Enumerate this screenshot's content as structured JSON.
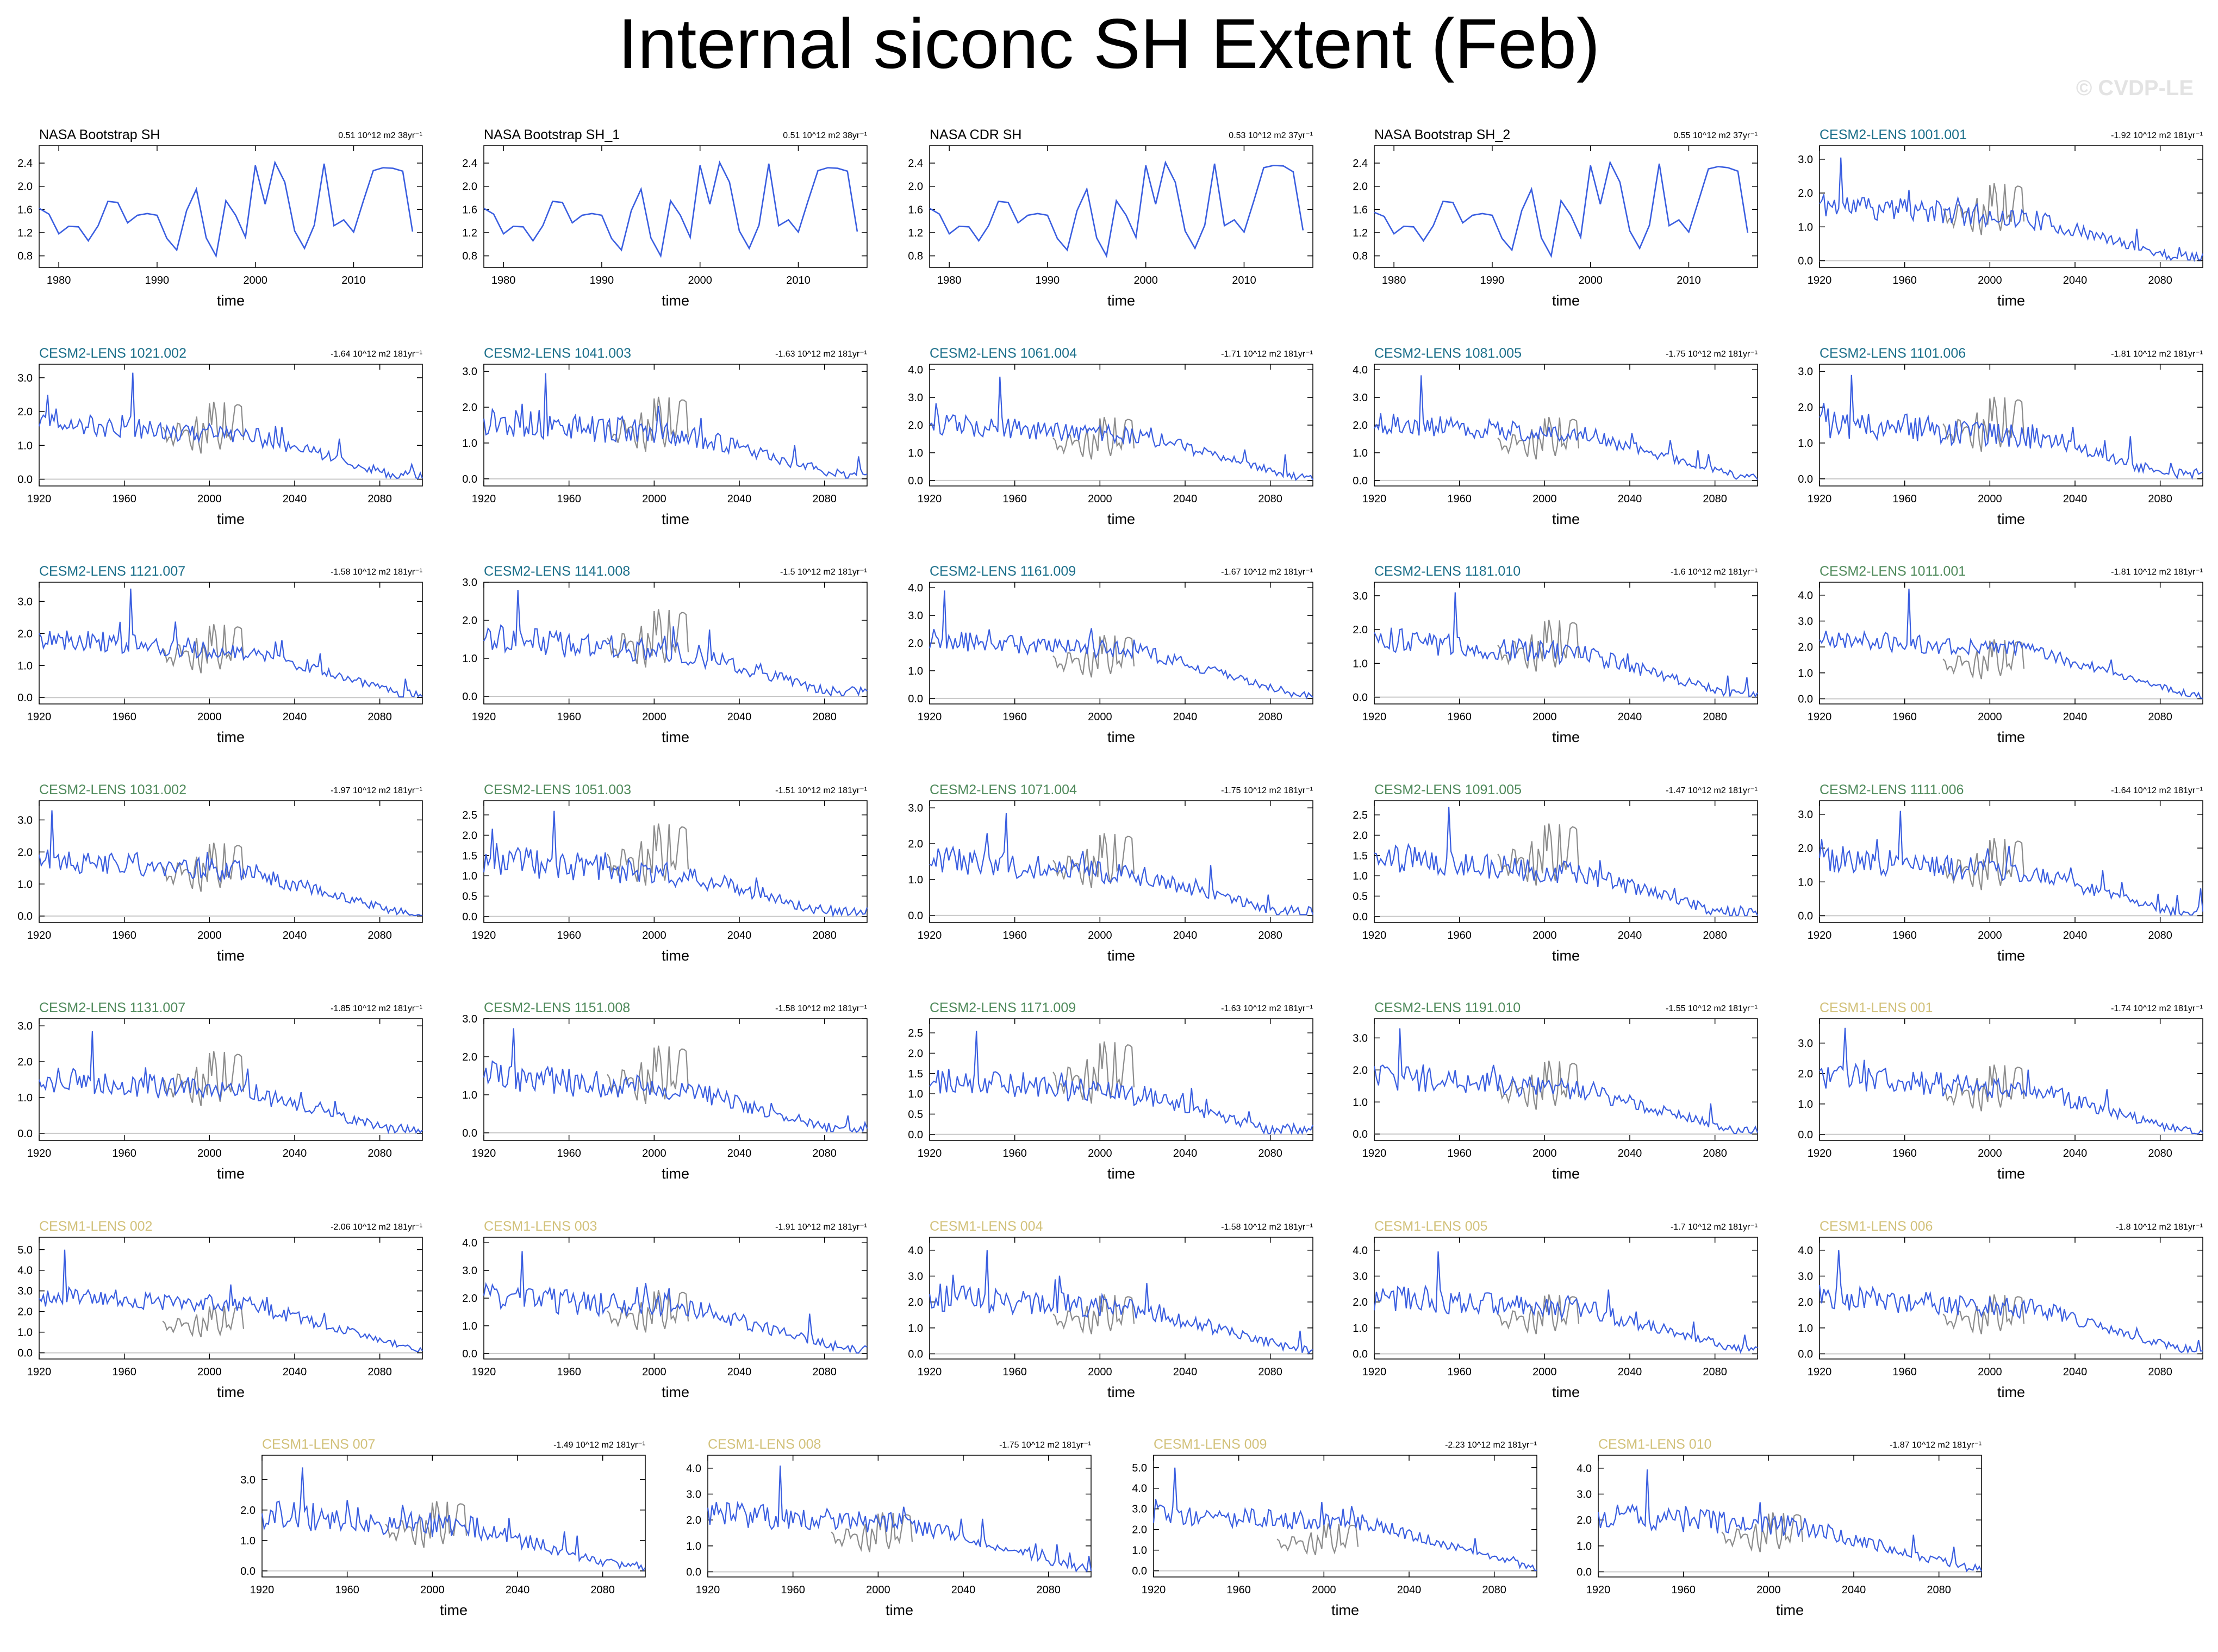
{
  "title": "Internal siconc SH Extent (Feb)",
  "watermark": "© CVDP-LE",
  "colors": {
    "series_main": "#3a5ee0",
    "series_obs_mean": "#8c8c8c",
    "zero_line": "#c8c8c8",
    "obs_label": "#000000",
    "cesm2_cmip6_label": "#1b6f8a",
    "cesm2_smbb_label": "#4f8a5b",
    "cesm1_label": "#d2c17a"
  },
  "chart_data": [
    {
      "type": "line",
      "title": "NASA Bootstrap SH",
      "title_color": "obs_label",
      "trend": "0.51 10^12 m2 38yr⁻¹",
      "xlabel": "time",
      "xlim": [
        1978,
        2017
      ],
      "xticks": [
        "1980",
        "1990",
        "2000",
        "2010"
      ],
      "ylim": [
        0.6,
        2.7
      ],
      "yticks": [
        "0.8",
        "1.2",
        "1.6",
        "2.0",
        "2.4"
      ],
      "series": [
        {
          "x_start": 1978,
          "values": [
            1.62,
            1.52,
            1.18,
            1.31,
            1.3,
            1.06,
            1.32,
            1.74,
            1.72,
            1.37,
            1.5,
            1.53,
            1.5,
            1.1,
            0.9,
            1.58,
            1.95,
            1.11,
            0.8,
            1.75,
            1.5,
            1.12,
            2.36,
            1.69,
            2.41,
            2.07,
            1.23,
            0.93,
            1.33,
            2.39,
            1.32,
            1.42,
            1.21,
            1.75,
            2.27,
            2.32,
            2.31,
            2.26,
            1.22
          ]
        }
      ]
    },
    {
      "type": "line",
      "title": "NASA Bootstrap SH_1",
      "title_color": "obs_label",
      "trend": "0.51 10^12 m2 38yr⁻¹",
      "xlabel": "time",
      "xlim": [
        1978,
        2017
      ],
      "xticks": [
        "1980",
        "1990",
        "2000",
        "2010"
      ],
      "ylim": [
        0.6,
        2.7
      ],
      "yticks": [
        "0.8",
        "1.2",
        "1.6",
        "2.0",
        "2.4"
      ],
      "series": [
        {
          "x_start": 1978,
          "values": [
            1.62,
            1.52,
            1.18,
            1.31,
            1.3,
            1.06,
            1.32,
            1.74,
            1.72,
            1.37,
            1.5,
            1.53,
            1.5,
            1.1,
            0.9,
            1.58,
            1.95,
            1.11,
            0.8,
            1.75,
            1.5,
            1.12,
            2.36,
            1.69,
            2.41,
            2.07,
            1.23,
            0.93,
            1.33,
            2.39,
            1.32,
            1.42,
            1.21,
            1.75,
            2.27,
            2.32,
            2.31,
            2.26,
            1.22
          ]
        }
      ]
    },
    {
      "type": "line",
      "title": "NASA CDR SH",
      "title_color": "obs_label",
      "trend": "0.53 10^12 m2 37yr⁻¹",
      "xlabel": "time",
      "xlim": [
        1978,
        2017
      ],
      "xticks": [
        "1980",
        "1990",
        "2000",
        "2010"
      ],
      "ylim": [
        0.6,
        2.7
      ],
      "yticks": [
        "0.8",
        "1.2",
        "1.6",
        "2.0",
        "2.4"
      ],
      "series": [
        {
          "x_start": 1978,
          "values": [
            1.62,
            1.52,
            1.18,
            1.31,
            1.3,
            1.06,
            1.32,
            1.74,
            1.72,
            1.37,
            1.5,
            1.53,
            1.5,
            1.1,
            0.9,
            1.58,
            1.95,
            1.11,
            0.8,
            1.75,
            1.5,
            1.12,
            2.36,
            1.69,
            2.41,
            2.07,
            1.23,
            0.93,
            1.33,
            2.39,
            1.32,
            1.42,
            1.21,
            1.75,
            2.32,
            2.36,
            2.35,
            2.25,
            1.24
          ]
        }
      ]
    },
    {
      "type": "line",
      "title": "NASA Bootstrap SH_2",
      "title_color": "obs_label",
      "trend": "0.55 10^12 m2 37yr⁻¹",
      "xlabel": "time",
      "xlim": [
        1978,
        2017
      ],
      "xticks": [
        "1980",
        "1990",
        "2000",
        "2010"
      ],
      "ylim": [
        0.6,
        2.7
      ],
      "yticks": [
        "0.8",
        "1.2",
        "1.6",
        "2.0",
        "2.4"
      ],
      "series": [
        {
          "x_start": 1978,
          "values": [
            1.55,
            1.48,
            1.18,
            1.31,
            1.3,
            1.06,
            1.32,
            1.74,
            1.72,
            1.37,
            1.5,
            1.53,
            1.5,
            1.1,
            0.9,
            1.58,
            1.95,
            1.11,
            0.8,
            1.75,
            1.5,
            1.12,
            2.36,
            1.69,
            2.41,
            2.07,
            1.23,
            0.93,
            1.33,
            2.39,
            1.32,
            1.42,
            1.21,
            1.75,
            2.3,
            2.34,
            2.32,
            2.26,
            1.2
          ]
        }
      ]
    },
    {
      "type": "line",
      "title": "CESM2-LENS 1001.001",
      "title_color": "cesm2_cmip6_label",
      "trend": "-1.92 10^12 m2 181yr⁻¹",
      "xlabel": "time",
      "ylim": [
        -0.2,
        3.4
      ],
      "yticks": [
        "0.0",
        "1.0",
        "2.0",
        "3.0"
      ],
      "trend_slope": -1.92,
      "peak": 3.05,
      "amp": 0.42,
      "seed": 11
    },
    {
      "type": "line",
      "title": "CESM2-LENS 1021.002",
      "title_color": "cesm2_cmip6_label",
      "trend": "-1.64 10^12 m2 181yr⁻¹",
      "xlabel": "time",
      "ylim": [
        -0.2,
        3.4
      ],
      "yticks": [
        "0.0",
        "1.0",
        "2.0",
        "3.0"
      ],
      "trend_slope": -1.64,
      "peak": 3.15,
      "amp": 0.4,
      "seed": 12
    },
    {
      "type": "line",
      "title": "CESM2-LENS 1041.003",
      "title_color": "cesm2_cmip6_label",
      "trend": "-1.63 10^12 m2 181yr⁻¹",
      "xlabel": "time",
      "ylim": [
        -0.2,
        3.2
      ],
      "yticks": [
        "0.0",
        "1.0",
        "2.0",
        "3.0"
      ],
      "trend_slope": -1.63,
      "peak": 2.95,
      "amp": 0.45,
      "seed": 13
    },
    {
      "type": "line",
      "title": "CESM2-LENS 1061.004",
      "title_color": "cesm2_cmip6_label",
      "trend": "-1.71 10^12 m2 181yr⁻¹",
      "xlabel": "time",
      "ylim": [
        -0.2,
        4.2
      ],
      "yticks": [
        "0.0",
        "1.0",
        "2.0",
        "3.0",
        "4.0"
      ],
      "trend_slope": -1.71,
      "peak": 3.75,
      "amp": 0.4,
      "seed": 14
    },
    {
      "type": "line",
      "title": "CESM2-LENS 1081.005",
      "title_color": "cesm2_cmip6_label",
      "trend": "-1.75 10^12 m2 181yr⁻¹",
      "xlabel": "time",
      "ylim": [
        -0.2,
        4.2
      ],
      "yticks": [
        "0.0",
        "1.0",
        "2.0",
        "3.0",
        "4.0"
      ],
      "trend_slope": -1.75,
      "peak": 3.8,
      "amp": 0.4,
      "seed": 15
    },
    {
      "type": "line",
      "title": "CESM2-LENS 1101.006",
      "title_color": "cesm2_cmip6_label",
      "trend": "-1.81 10^12 m2 181yr⁻¹",
      "xlabel": "time",
      "ylim": [
        -0.2,
        3.2
      ],
      "yticks": [
        "0.0",
        "1.0",
        "2.0",
        "3.0"
      ],
      "trend_slope": -1.81,
      "peak": 2.9,
      "amp": 0.45,
      "seed": 16
    },
    {
      "type": "line",
      "title": "CESM2-LENS 1121.007",
      "title_color": "cesm2_cmip6_label",
      "trend": "-1.58 10^12 m2 181yr⁻¹",
      "xlabel": "time",
      "ylim": [
        -0.2,
        3.6
      ],
      "yticks": [
        "0.0",
        "1.0",
        "2.0",
        "3.0"
      ],
      "trend_slope": -1.58,
      "peak": 3.4,
      "amp": 0.38,
      "seed": 17
    },
    {
      "type": "line",
      "title": "CESM2-LENS 1141.008",
      "title_color": "cesm2_cmip6_label",
      "trend": "-1.5 10^12 m2 181yr⁻¹",
      "xlabel": "time",
      "ylim": [
        -0.2,
        3.0
      ],
      "yticks": [
        "0.0",
        "1.0",
        "2.0",
        "3.0"
      ],
      "trend_slope": -1.5,
      "peak": 2.8,
      "amp": 0.42,
      "seed": 18
    },
    {
      "type": "line",
      "title": "CESM2-LENS 1161.009",
      "title_color": "cesm2_cmip6_label",
      "trend": "-1.67 10^12 m2 181yr⁻¹",
      "xlabel": "time",
      "ylim": [
        -0.2,
        4.2
      ],
      "yticks": [
        "0.0",
        "1.0",
        "2.0",
        "3.0",
        "4.0"
      ],
      "trend_slope": -1.67,
      "peak": 3.9,
      "amp": 0.38,
      "seed": 19
    },
    {
      "type": "line",
      "title": "CESM2-LENS 1181.010",
      "title_color": "cesm2_cmip6_label",
      "trend": "-1.6 10^12 m2 181yr⁻¹",
      "xlabel": "time",
      "ylim": [
        -0.2,
        3.4
      ],
      "yticks": [
        "0.0",
        "1.0",
        "2.0",
        "3.0"
      ],
      "trend_slope": -1.6,
      "peak": 3.1,
      "amp": 0.42,
      "seed": 20
    },
    {
      "type": "line",
      "title": "CESM2-LENS 1011.001",
      "title_color": "cesm2_smbb_label",
      "trend": "-1.81 10^12 m2 181yr⁻¹",
      "xlabel": "time",
      "ylim": [
        -0.2,
        4.5
      ],
      "yticks": [
        "0.0",
        "1.0",
        "2.0",
        "3.0",
        "4.0"
      ],
      "trend_slope": -1.81,
      "peak": 4.25,
      "amp": 0.4,
      "seed": 21
    },
    {
      "type": "line",
      "title": "CESM2-LENS 1031.002",
      "title_color": "cesm2_smbb_label",
      "trend": "-1.97 10^12 m2 181yr⁻¹",
      "xlabel": "time",
      "ylim": [
        -0.2,
        3.6
      ],
      "yticks": [
        "0.0",
        "1.0",
        "2.0",
        "3.0"
      ],
      "trend_slope": -1.97,
      "peak": 3.3,
      "amp": 0.42,
      "seed": 22
    },
    {
      "type": "line",
      "title": "CESM2-LENS 1051.003",
      "title_color": "cesm2_smbb_label",
      "trend": "-1.51 10^12 m2 181yr⁻¹",
      "xlabel": "time",
      "ylim": [
        -0.15,
        2.85
      ],
      "yticks": [
        "0.0",
        "0.5",
        "1.0",
        "1.5",
        "2.0",
        "2.5"
      ],
      "trend_slope": -1.51,
      "peak": 2.6,
      "amp": 0.42,
      "seed": 23
    },
    {
      "type": "line",
      "title": "CESM2-LENS 1071.004",
      "title_color": "cesm2_smbb_label",
      "trend": "-1.75 10^12 m2 181yr⁻¹",
      "xlabel": "time",
      "ylim": [
        -0.2,
        3.2
      ],
      "yticks": [
        "0.0",
        "1.0",
        "2.0",
        "3.0"
      ],
      "trend_slope": -1.75,
      "peak": 2.85,
      "amp": 0.42,
      "seed": 24
    },
    {
      "type": "line",
      "title": "CESM2-LENS 1091.005",
      "title_color": "cesm2_smbb_label",
      "trend": "-1.47 10^12 m2 181yr⁻¹",
      "xlabel": "time",
      "ylim": [
        -0.15,
        2.85
      ],
      "yticks": [
        "0.0",
        "0.5",
        "1.0",
        "1.5",
        "2.0",
        "2.5"
      ],
      "trend_slope": -1.47,
      "peak": 2.7,
      "amp": 0.4,
      "seed": 25
    },
    {
      "type": "line",
      "title": "CESM2-LENS 1111.006",
      "title_color": "cesm2_smbb_label",
      "trend": "-1.64 10^12 m2 181yr⁻¹",
      "xlabel": "time",
      "ylim": [
        -0.2,
        3.4
      ],
      "yticks": [
        "0.0",
        "1.0",
        "2.0",
        "3.0"
      ],
      "trend_slope": -1.64,
      "peak": 3.1,
      "amp": 0.42,
      "seed": 26
    },
    {
      "type": "line",
      "title": "CESM2-LENS 1131.007",
      "title_color": "cesm2_smbb_label",
      "trend": "-1.85 10^12 m2 181yr⁻¹",
      "xlabel": "time",
      "ylim": [
        -0.2,
        3.2
      ],
      "yticks": [
        "0.0",
        "1.0",
        "2.0",
        "3.0"
      ],
      "trend_slope": -1.85,
      "peak": 2.85,
      "amp": 0.4,
      "seed": 27
    },
    {
      "type": "line",
      "title": "CESM2-LENS 1151.008",
      "title_color": "cesm2_smbb_label",
      "trend": "-1.58 10^12 m2 181yr⁻¹",
      "xlabel": "time",
      "ylim": [
        -0.2,
        3.0
      ],
      "yticks": [
        "0.0",
        "1.0",
        "2.0",
        "3.0"
      ],
      "trend_slope": -1.58,
      "peak": 2.75,
      "amp": 0.42,
      "seed": 28
    },
    {
      "type": "line",
      "title": "CESM2-LENS 1171.009",
      "title_color": "cesm2_smbb_label",
      "trend": "-1.63 10^12 m2 181yr⁻¹",
      "xlabel": "time",
      "ylim": [
        -0.15,
        2.85
      ],
      "yticks": [
        "0.0",
        "0.5",
        "1.0",
        "1.5",
        "2.0",
        "2.5"
      ],
      "trend_slope": -1.63,
      "peak": 2.55,
      "amp": 0.38,
      "seed": 29
    },
    {
      "type": "line",
      "title": "CESM2-LENS 1191.010",
      "title_color": "cesm2_smbb_label",
      "trend": "-1.55 10^12 m2 181yr⁻¹",
      "xlabel": "time",
      "ylim": [
        -0.2,
        3.6
      ],
      "yticks": [
        "0.0",
        "1.0",
        "2.0",
        "3.0"
      ],
      "trend_slope": -1.55,
      "peak": 3.3,
      "amp": 0.42,
      "seed": 30
    },
    {
      "type": "line",
      "title": "CESM1-LENS 001",
      "title_color": "cesm1_label",
      "trend": "-1.74 10^12 m2 181yr⁻¹",
      "xlabel": "time",
      "ylim": [
        -0.2,
        3.8
      ],
      "yticks": [
        "0.0",
        "1.0",
        "2.0",
        "3.0"
      ],
      "trend_slope": -1.74,
      "peak": 3.5,
      "amp": 0.48,
      "seed": 31
    },
    {
      "type": "line",
      "title": "CESM1-LENS 002",
      "title_color": "cesm1_label",
      "trend": "-2.06 10^12 m2 181yr⁻¹",
      "xlabel": "time",
      "ylim": [
        -0.3,
        5.6
      ],
      "yticks": [
        "0.0",
        "1.0",
        "2.0",
        "3.0",
        "4.0",
        "5.0"
      ],
      "trend_slope": -2.06,
      "peak": 5.0,
      "amp": 0.5,
      "seed": 32
    },
    {
      "type": "line",
      "title": "CESM1-LENS 003",
      "title_color": "cesm1_label",
      "trend": "-1.91 10^12 m2 181yr⁻¹",
      "xlabel": "time",
      "ylim": [
        -0.2,
        4.2
      ],
      "yticks": [
        "0.0",
        "1.0",
        "2.0",
        "3.0",
        "4.0"
      ],
      "trend_slope": -1.91,
      "peak": 3.7,
      "amp": 0.5,
      "seed": 33
    },
    {
      "type": "line",
      "title": "CESM1-LENS 004",
      "title_color": "cesm1_label",
      "trend": "-1.58 10^12 m2 181yr⁻¹",
      "xlabel": "time",
      "ylim": [
        -0.2,
        4.5
      ],
      "yticks": [
        "0.0",
        "1.0",
        "2.0",
        "3.0",
        "4.0"
      ],
      "trend_slope": -1.58,
      "peak": 4.0,
      "amp": 0.55,
      "seed": 34
    },
    {
      "type": "line",
      "title": "CESM1-LENS 005",
      "title_color": "cesm1_label",
      "trend": "-1.7 10^12 m2 181yr⁻¹",
      "xlabel": "time",
      "ylim": [
        -0.2,
        4.5
      ],
      "yticks": [
        "0.0",
        "1.0",
        "2.0",
        "3.0",
        "4.0"
      ],
      "trend_slope": -1.7,
      "peak": 3.95,
      "amp": 0.5,
      "seed": 35
    },
    {
      "type": "line",
      "title": "CESM1-LENS 006",
      "title_color": "cesm1_label",
      "trend": "-1.8 10^12 m2 181yr⁻¹",
      "xlabel": "time",
      "ylim": [
        -0.2,
        4.5
      ],
      "yticks": [
        "0.0",
        "1.0",
        "2.0",
        "3.0",
        "4.0"
      ],
      "trend_slope": -1.8,
      "peak": 4.0,
      "amp": 0.5,
      "seed": 36
    },
    {
      "type": "line",
      "title": "CESM1-LENS 007",
      "title_color": "cesm1_label",
      "trend": "-1.49 10^12 m2 181yr⁻¹",
      "xlabel": "time",
      "ylim": [
        -0.2,
        3.8
      ],
      "yticks": [
        "0.0",
        "1.0",
        "2.0",
        "3.0"
      ],
      "trend_slope": -1.49,
      "peak": 3.4,
      "amp": 0.5,
      "seed": 37
    },
    {
      "type": "line",
      "title": "CESM1-LENS 008",
      "title_color": "cesm1_label",
      "trend": "-1.75 10^12 m2 181yr⁻¹",
      "xlabel": "time",
      "ylim": [
        -0.2,
        4.5
      ],
      "yticks": [
        "0.0",
        "1.0",
        "2.0",
        "3.0",
        "4.0"
      ],
      "trend_slope": -1.75,
      "peak": 4.1,
      "amp": 0.5,
      "seed": 38
    },
    {
      "type": "line",
      "title": "CESM1-LENS 009",
      "title_color": "cesm1_label",
      "trend": "-2.23 10^12 m2 181yr⁻¹",
      "xlabel": "time",
      "ylim": [
        -0.3,
        5.6
      ],
      "yticks": [
        "0.0",
        "1.0",
        "2.0",
        "3.0",
        "4.0",
        "5.0"
      ],
      "trend_slope": -2.23,
      "peak": 5.0,
      "amp": 0.5,
      "seed": 39
    },
    {
      "type": "line",
      "title": "CESM1-LENS 010",
      "title_color": "cesm1_label",
      "trend": "-1.87 10^12 m2 181yr⁻¹",
      "xlabel": "time",
      "ylim": [
        -0.2,
        4.5
      ],
      "yticks": [
        "0.0",
        "1.0",
        "2.0",
        "3.0",
        "4.0"
      ],
      "trend_slope": -1.87,
      "peak": 3.95,
      "amp": 0.5,
      "seed": 40
    }
  ],
  "model_axis": {
    "xlim": [
      1920,
      2100
    ],
    "xticks": [
      "1920",
      "1960",
      "2000",
      "2040",
      "2080"
    ]
  }
}
